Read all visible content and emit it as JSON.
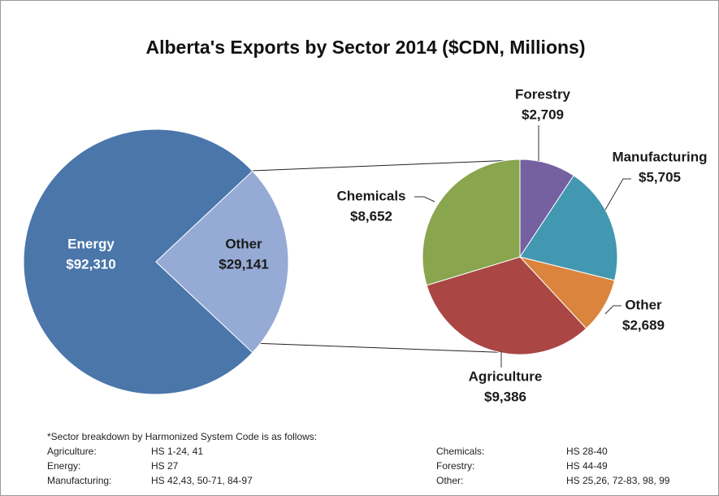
{
  "chart_data": {
    "type": "pie-of-pie",
    "title": "Alberta's Exports by Sector 2014 ($CDN, Millions)",
    "categories": [
      "Energy",
      "Other"
    ],
    "values": [
      92310,
      29141
    ],
    "value_labels": [
      "$92,310",
      "$29,141"
    ],
    "colors": [
      "#4a76aa",
      "#95aad4"
    ],
    "sub": {
      "categories": [
        "Forestry",
        "Manufacturing",
        "Other",
        "Agriculture",
        "Chemicals"
      ],
      "values": [
        2709,
        5705,
        2689,
        9386,
        8652
      ],
      "value_labels": [
        "$2,709",
        "$5,705",
        "$2,689",
        "$9,386",
        "$8,652"
      ],
      "colors": [
        "#7560a0",
        "#4298b0",
        "#db843d",
        "#aa4643",
        "#89a54e"
      ]
    }
  },
  "footnote": {
    "heading": "*Sector breakdown by Harmonized System Code is as follows:",
    "rows": [
      [
        "Agriculture:",
        "HS 1-24, 41",
        "Chemicals:",
        "HS 28-40"
      ],
      [
        "Energy:",
        "HS 27",
        "Forestry:",
        "HS 44-49"
      ],
      [
        "Manufacturing:",
        "HS 42,43, 50-71, 84-97",
        "Other:",
        "HS 25,26, 72-83, 98, 99"
      ]
    ]
  }
}
